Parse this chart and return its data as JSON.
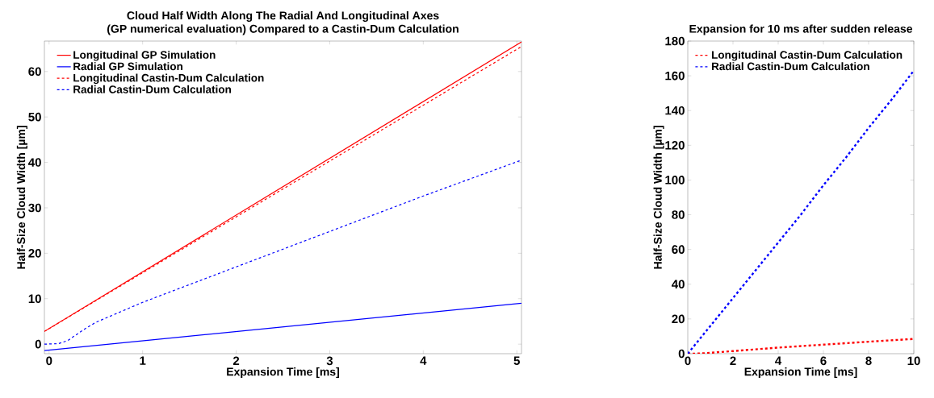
{
  "chart_data": [
    {
      "type": "line",
      "title": "Cloud Half Width Along The Radial And Longitudinal Axes\n(GP numerical evaluation) Compared to a Castin-Dum Calculation",
      "xlabel": "Expansion Time [ms]",
      "ylabel": "Half-Size Cloud Width [µm]",
      "xlim": [
        -0.05,
        5.05
      ],
      "ylim": [
        -2.1,
        66.7
      ],
      "xticks": [
        0,
        1,
        2,
        3,
        4,
        5
      ],
      "yticks": [
        0,
        10,
        20,
        30,
        40,
        50,
        60
      ],
      "legend": "top left",
      "series": [
        {
          "name": "Longitudinal GP Simulation",
          "color": "#ff0000",
          "line_style": "solid",
          "x": [
            -0.05,
            5.05
          ],
          "values": [
            2.8,
            66.5
          ]
        },
        {
          "name": "Radial GP Simulation",
          "color": "#0000ff",
          "line_style": "solid",
          "x": [
            -0.05,
            5.05
          ],
          "values": [
            -1.4,
            9.0
          ]
        },
        {
          "name": "Longitudinal Castin-Dum Calculation",
          "color": "#ff0000",
          "line_style": "dashed",
          "x": [
            -0.05,
            5.05
          ],
          "values": [
            2.8,
            65.5
          ]
        },
        {
          "name": "Radial Castin-Dum Calculation",
          "color": "#0000ff",
          "line_style": "dashed",
          "x": [
            -0.05,
            0.1,
            0.2,
            0.4,
            0.5,
            1,
            2,
            3,
            4,
            5.05
          ],
          "values": [
            0,
            0.1,
            0.8,
            3.6,
            4.8,
            9.2,
            17.0,
            24.8,
            32.6,
            40.5
          ]
        }
      ]
    },
    {
      "type": "line",
      "title": "Expansion for 10 ms after sudden release",
      "xlabel": "Expansion Time [ms]",
      "ylabel": "Half-Size Cloud Width [µm]",
      "xlim": [
        0,
        10
      ],
      "ylim": [
        0,
        180
      ],
      "xticks": [
        0,
        2,
        4,
        6,
        8,
        10
      ],
      "yticks": [
        0,
        20,
        40,
        60,
        80,
        100,
        120,
        140,
        160,
        180
      ],
      "legend": "top left",
      "series": [
        {
          "name": "Longitudinal Castin-Dum Calculation",
          "color": "#ff0000",
          "line_style": "dashed",
          "x": [
            0,
            0.5,
            1,
            2,
            4,
            6,
            8,
            10
          ],
          "values": [
            0,
            0.1,
            0.5,
            1.5,
            3.5,
            5.2,
            6.9,
            8.5
          ]
        },
        {
          "name": "Radial Castin-Dum Calculation",
          "color": "#0000ff",
          "line_style": "dashed",
          "x": [
            0,
            1,
            2,
            3,
            4,
            5,
            6,
            7,
            8,
            9,
            10
          ],
          "values": [
            0,
            16,
            32,
            48,
            64,
            80,
            97,
            113,
            130,
            146,
            163
          ]
        }
      ]
    }
  ]
}
